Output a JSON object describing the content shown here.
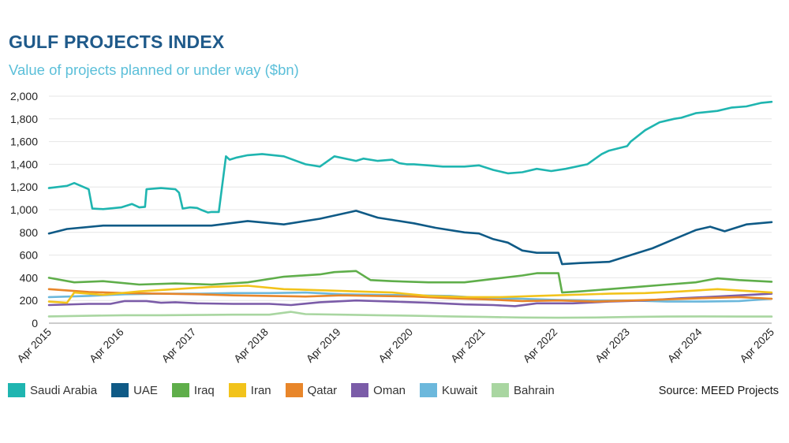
{
  "title": "GULF PROJECTS INDEX",
  "subtitle": "Value of projects planned or under way ($bn)",
  "source": "Source: MEED Projects",
  "chart_data": {
    "type": "line",
    "ylim": [
      0,
      2000
    ],
    "y_ticks": [
      "0",
      "200",
      "400",
      "600",
      "800",
      "1,000",
      "1,200",
      "1,400",
      "1,600",
      "1,800",
      "2,000"
    ],
    "y_tick_values": [
      0,
      200,
      400,
      600,
      800,
      1000,
      1200,
      1400,
      1600,
      1800,
      2000
    ],
    "x_ticks": [
      "Apr 2015",
      "Apr 2016",
      "Apr 2017",
      "Apr 2018",
      "Apr 2019",
      "Apr 2020",
      "Apr 2021",
      "Apr 2022",
      "Apr 2023",
      "Apr 2024",
      "Apr 2025"
    ],
    "x_tick_values": [
      2015.25,
      2016.25,
      2017.25,
      2018.25,
      2019.25,
      2020.25,
      2021.25,
      2022.25,
      2023.25,
      2024.25,
      2025.25
    ],
    "xlim": [
      2015.25,
      2025.25
    ],
    "grid": "horizontal",
    "legend_position": "bottom",
    "series": [
      {
        "name": "Saudi Arabia",
        "color": "#1fb5b0",
        "width": 2.6,
        "x": [
          2015.25,
          2015.5,
          2015.6,
          2015.8,
          2015.85,
          2016.0,
          2016.25,
          2016.4,
          2016.5,
          2016.58,
          2016.6,
          2016.8,
          2017.0,
          2017.05,
          2017.1,
          2017.2,
          2017.3,
          2017.35,
          2017.45,
          2017.5,
          2017.6,
          2017.7,
          2017.75,
          2017.85,
          2018.0,
          2018.2,
          2018.5,
          2018.8,
          2019.0,
          2019.2,
          2019.5,
          2019.6,
          2019.8,
          2020.0,
          2020.1,
          2020.2,
          2020.3,
          2020.5,
          2020.7,
          2021.0,
          2021.2,
          2021.4,
          2021.6,
          2021.8,
          2022.0,
          2022.2,
          2022.4,
          2022.7,
          2022.9,
          2023.0,
          2023.25,
          2023.3,
          2023.5,
          2023.7,
          2023.9,
          2024.0,
          2024.2,
          2024.5,
          2024.7,
          2024.9,
          2025.1,
          2025.25
        ],
        "y": [
          1190,
          1210,
          1235,
          1180,
          1010,
          1005,
          1020,
          1050,
          1020,
          1025,
          1180,
          1190,
          1180,
          1150,
          1010,
          1020,
          1015,
          1000,
          975,
          980,
          980,
          1470,
          1440,
          1460,
          1480,
          1490,
          1470,
          1400,
          1380,
          1470,
          1430,
          1450,
          1430,
          1440,
          1410,
          1400,
          1400,
          1390,
          1380,
          1380,
          1390,
          1350,
          1320,
          1330,
          1360,
          1340,
          1360,
          1400,
          1490,
          1520,
          1560,
          1600,
          1700,
          1770,
          1800,
          1810,
          1850,
          1870,
          1900,
          1910,
          1940,
          1950
        ]
      },
      {
        "name": "UAE",
        "color": "#0f5a86",
        "width": 2.6,
        "x": [
          2015.25,
          2015.5,
          2016.0,
          2016.5,
          2017.0,
          2017.5,
          2018.0,
          2018.5,
          2019.0,
          2019.5,
          2019.8,
          2020.0,
          2020.3,
          2020.6,
          2021.0,
          2021.2,
          2021.4,
          2021.6,
          2021.8,
          2022.0,
          2022.3,
          2022.35,
          2022.6,
          2023.0,
          2023.3,
          2023.6,
          2023.9,
          2024.2,
          2024.4,
          2024.6,
          2024.9,
          2025.25
        ],
        "y": [
          790,
          830,
          860,
          860,
          860,
          860,
          900,
          870,
          920,
          990,
          930,
          910,
          880,
          840,
          800,
          790,
          740,
          710,
          640,
          620,
          620,
          520,
          530,
          540,
          600,
          660,
          740,
          820,
          850,
          810,
          870,
          890
        ]
      },
      {
        "name": "Iraq",
        "color": "#5fae4a",
        "width": 2.6,
        "x": [
          2015.25,
          2015.6,
          2016.0,
          2016.5,
          2017.0,
          2017.5,
          2018.0,
          2018.5,
          2019.0,
          2019.2,
          2019.5,
          2019.7,
          2020.0,
          2020.5,
          2021.0,
          2021.4,
          2021.8,
          2022.0,
          2022.3,
          2022.35,
          2022.6,
          2023.0,
          2023.4,
          2023.8,
          2024.2,
          2024.5,
          2024.8,
          2025.25
        ],
        "y": [
          400,
          360,
          370,
          340,
          350,
          340,
          360,
          410,
          430,
          450,
          460,
          380,
          370,
          360,
          360,
          390,
          420,
          440,
          440,
          270,
          280,
          300,
          320,
          340,
          360,
          395,
          380,
          365
        ]
      },
      {
        "name": "Iran",
        "color": "#f2c31b",
        "width": 2.6,
        "x": [
          2015.25,
          2015.5,
          2015.6,
          2016.0,
          2016.5,
          2017.0,
          2017.5,
          2018.0,
          2018.5,
          2019.0,
          2019.5,
          2020.0,
          2020.5,
          2021.0,
          2021.5,
          2022.0,
          2022.5,
          2023.0,
          2023.5,
          2024.0,
          2024.5,
          2025.25
        ],
        "y": [
          190,
          180,
          270,
          250,
          280,
          300,
          320,
          330,
          300,
          290,
          280,
          270,
          240,
          230,
          230,
          240,
          250,
          260,
          265,
          280,
          300,
          270
        ]
      },
      {
        "name": "Qatar",
        "color": "#e8862a",
        "width": 2.6,
        "x": [
          2015.25,
          2015.8,
          2016.3,
          2016.8,
          2017.3,
          2017.8,
          2018.3,
          2018.8,
          2019.3,
          2019.8,
          2020.3,
          2020.8,
          2021.3,
          2021.8,
          2022.3,
          2022.8,
          2023.3,
          2023.8,
          2024.3,
          2024.8,
          2025.25
        ],
        "y": [
          300,
          275,
          265,
          260,
          255,
          245,
          240,
          235,
          245,
          240,
          235,
          220,
          210,
          195,
          200,
          190,
          200,
          210,
          220,
          230,
          215
        ]
      },
      {
        "name": "Oman",
        "color": "#7b5ca8",
        "width": 2.6,
        "x": [
          2015.25,
          2015.8,
          2016.1,
          2016.3,
          2016.6,
          2016.8,
          2017.0,
          2017.3,
          2017.8,
          2018.3,
          2018.6,
          2019.0,
          2019.5,
          2020.0,
          2020.5,
          2021.0,
          2021.4,
          2021.7,
          2022.0,
          2022.5,
          2023.0,
          2023.5,
          2024.0,
          2024.5,
          2025.25
        ],
        "y": [
          160,
          170,
          170,
          195,
          195,
          180,
          185,
          175,
          170,
          170,
          160,
          185,
          200,
          190,
          180,
          165,
          160,
          150,
          175,
          175,
          190,
          200,
          220,
          235,
          260
        ]
      },
      {
        "name": "Kuwait",
        "color": "#6cb8dc",
        "width": 2.6,
        "x": [
          2015.25,
          2015.8,
          2016.3,
          2016.8,
          2017.3,
          2017.8,
          2018.3,
          2018.8,
          2019.3,
          2019.8,
          2020.3,
          2020.8,
          2021.3,
          2021.8,
          2022.3,
          2022.8,
          2023.3,
          2023.8,
          2024.3,
          2024.8,
          2025.25
        ],
        "y": [
          230,
          240,
          255,
          260,
          260,
          265,
          265,
          270,
          255,
          250,
          245,
          240,
          220,
          215,
          205,
          200,
          200,
          190,
          190,
          195,
          215
        ]
      },
      {
        "name": "Bahrain",
        "color": "#a9d6a1",
        "width": 2.6,
        "x": [
          2015.25,
          2015.8,
          2016.3,
          2016.8,
          2017.3,
          2017.8,
          2018.3,
          2018.6,
          2018.8,
          2019.3,
          2019.8,
          2020.3,
          2020.8,
          2021.3,
          2021.8,
          2022.3,
          2022.8,
          2023.3,
          2023.8,
          2024.3,
          2024.8,
          2025.25
        ],
        "y": [
          60,
          65,
          70,
          70,
          72,
          75,
          75,
          100,
          80,
          75,
          70,
          65,
          60,
          55,
          50,
          48,
          50,
          55,
          58,
          60,
          58,
          58
        ]
      }
    ]
  }
}
